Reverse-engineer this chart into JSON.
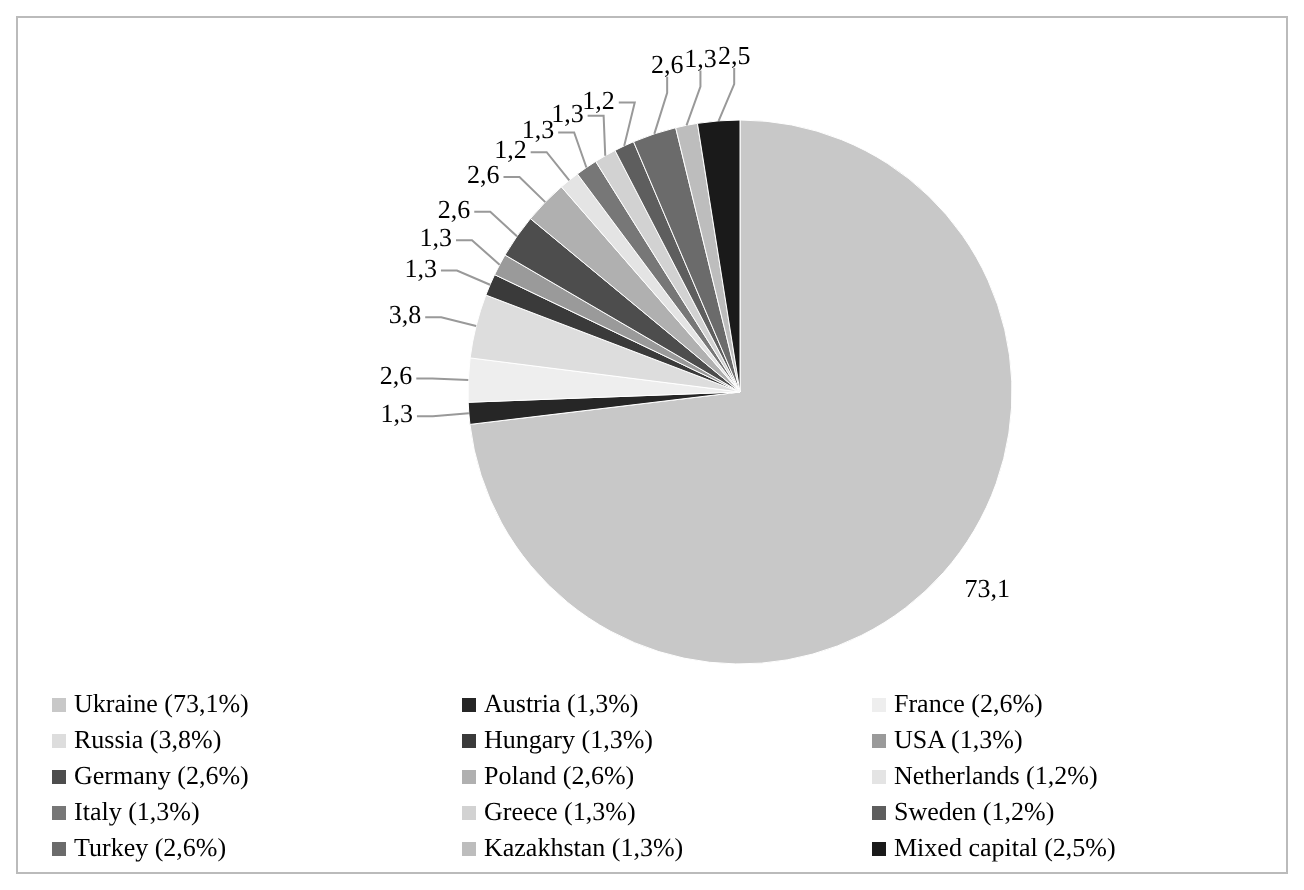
{
  "chart_data": {
    "type": "pie",
    "legend": "bottom",
    "categories": [
      "Ukraine (73,1%)",
      "Austria (1,3%)",
      "France (2,6%)",
      "Russia (3,8%)",
      "Hungary (1,3%)",
      "USA (1,3%)",
      "Germany (2,6%)",
      "Poland (2,6%)",
      "Netherlands (1,2%)",
      "Italy (1,3%)",
      "Greece (1,3%)",
      "Sweden (1,2%)",
      "Turkey (2,6%)",
      "Kazakhstan (1,3%)",
      "Mixed capital (2,5%)"
    ],
    "values": [
      73.1,
      1.3,
      2.6,
      3.8,
      1.3,
      1.3,
      2.6,
      2.6,
      1.2,
      1.3,
      1.3,
      1.2,
      2.6,
      1.3,
      2.5
    ],
    "value_labels": [
      "73,1",
      "1,3",
      "2,6",
      "3,8",
      "1,3",
      "1,3",
      "2,6",
      "2,6",
      "1,2",
      "1,3",
      "1,3",
      "1,2",
      "2,6",
      "1,3",
      "2,5"
    ],
    "colors": [
      "#c8c8c8",
      "#262626",
      "#eeeeee",
      "#dddddd",
      "#3a3a3a",
      "#9a9a9a",
      "#4d4d4d",
      "#b0b0b0",
      "#e4e4e4",
      "#777777",
      "#d2d2d2",
      "#5e5e5e",
      "#6b6b6b",
      "#bdbdbd",
      "#1a1a1a"
    ]
  }
}
